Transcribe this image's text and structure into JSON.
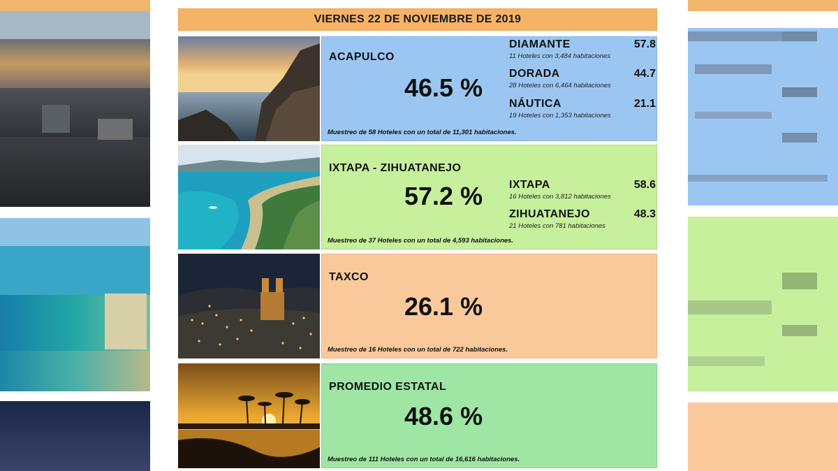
{
  "header": {
    "date": "VIERNES 22 DE NOVIEMBRE DE 2019"
  },
  "colors": {
    "date_bar": "#f6b266",
    "acapulco": "#9cc6f2",
    "ixtapa": "#c6f09c",
    "taxco": "#fac99b",
    "estatal": "#9fe6a4"
  },
  "rows": [
    {
      "name": "ACAPULCO",
      "percent": "46.5 %",
      "photo_icon": "coastal-sunset-photo",
      "zones": [
        {
          "name": "DIAMANTE",
          "value": "57.8",
          "detail": "11 Hoteles con 3,484 habitaciones"
        },
        {
          "name": "DORADA",
          "value": "44.7",
          "detail": "28 Hoteles con 6,464 habitaciones"
        },
        {
          "name": "NÁUTICA",
          "value": "21.1",
          "detail": "19 Hoteles con 1,353 habitaciones"
        }
      ],
      "sample": "Muestreo de 58 Hoteles con un total de 11,301 habitaciones."
    },
    {
      "name": "IXTAPA - ZIHUATANEJO",
      "percent": "57.2 %",
      "photo_icon": "bay-aerial-photo",
      "zones": [
        {
          "name": "IXTAPA",
          "value": "58.6",
          "detail": "16 Hoteles con 3,812 habitaciones"
        },
        {
          "name": "ZIHUATANEJO",
          "value": "48.3",
          "detail": "21 Hoteles con 781 habitaciones"
        }
      ],
      "sample": "Muestreo de 37 Hoteles con un total de 4,593 habitaciones."
    },
    {
      "name": "TAXCO",
      "percent": "26.1 %",
      "photo_icon": "town-night-photo",
      "zones": [],
      "sample": "Muestreo de 16 Hoteles con un total de 722 habitaciones."
    },
    {
      "name": "PROMEDIO ESTATAL",
      "percent": "48.6 %",
      "photo_icon": "palm-sunset-photo",
      "zones": [],
      "sample": "Muestreo de 111 Hoteles con un total de 16,616 habitaciones."
    }
  ]
}
